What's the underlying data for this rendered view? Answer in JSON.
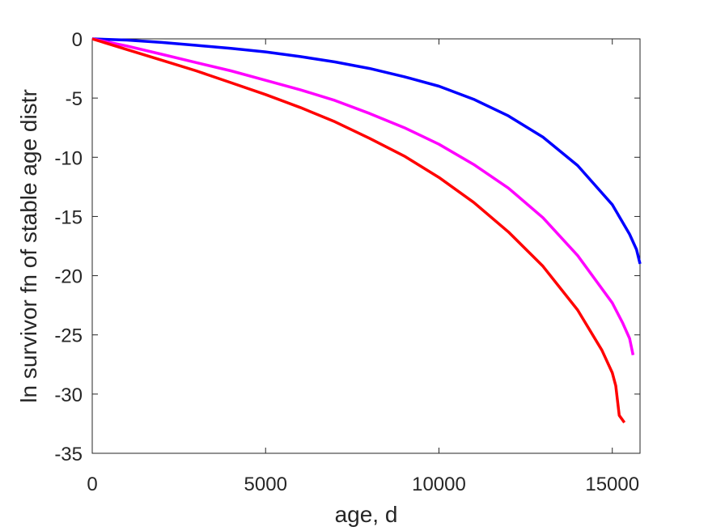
{
  "chart_data": {
    "type": "line",
    "xlabel": "age, d",
    "ylabel": "ln survivor fn of stable age distr",
    "xlim": [
      0,
      15800
    ],
    "ylim": [
      -35,
      0
    ],
    "xticks": [
      0,
      5000,
      10000,
      15000
    ],
    "xtick_labels": [
      "0",
      "5000",
      "10000",
      "15000"
    ],
    "yticks": [
      0,
      -5,
      -10,
      -15,
      -20,
      -25,
      -30,
      -35
    ],
    "ytick_labels": [
      "0",
      "-5",
      "-10",
      "-15",
      "-20",
      "-25",
      "-30",
      "-35"
    ],
    "grid": false,
    "box": true,
    "series": [
      {
        "color": "#0000ff",
        "points": [
          [
            0,
            0
          ],
          [
            1000,
            -0.1
          ],
          [
            2000,
            -0.3
          ],
          [
            3000,
            -0.55
          ],
          [
            4000,
            -0.8
          ],
          [
            5000,
            -1.1
          ],
          [
            6000,
            -1.5
          ],
          [
            7000,
            -1.95
          ],
          [
            8000,
            -2.5
          ],
          [
            9000,
            -3.2
          ],
          [
            10000,
            -4.0
          ],
          [
            11000,
            -5.1
          ],
          [
            12000,
            -6.5
          ],
          [
            13000,
            -8.3
          ],
          [
            14000,
            -10.7
          ],
          [
            15000,
            -14.0
          ],
          [
            15500,
            -16.5
          ],
          [
            15700,
            -17.8
          ],
          [
            15800,
            -19.0
          ]
        ]
      },
      {
        "color": "#ff00ff",
        "points": [
          [
            0,
            0
          ],
          [
            1000,
            -0.6
          ],
          [
            2000,
            -1.3
          ],
          [
            3000,
            -2.0
          ],
          [
            4000,
            -2.7
          ],
          [
            5000,
            -3.5
          ],
          [
            6000,
            -4.3
          ],
          [
            7000,
            -5.2
          ],
          [
            8000,
            -6.3
          ],
          [
            9000,
            -7.5
          ],
          [
            10000,
            -8.9
          ],
          [
            11000,
            -10.6
          ],
          [
            12000,
            -12.6
          ],
          [
            13000,
            -15.1
          ],
          [
            14000,
            -18.3
          ],
          [
            15000,
            -22.3
          ],
          [
            15300,
            -24.0
          ],
          [
            15500,
            -25.3
          ],
          [
            15600,
            -26.7
          ]
        ]
      },
      {
        "color": "#ff0000",
        "points": [
          [
            0,
            0
          ],
          [
            1000,
            -0.9
          ],
          [
            2000,
            -1.8
          ],
          [
            3000,
            -2.7
          ],
          [
            4000,
            -3.7
          ],
          [
            5000,
            -4.7
          ],
          [
            6000,
            -5.8
          ],
          [
            7000,
            -7.0
          ],
          [
            8000,
            -8.4
          ],
          [
            9000,
            -9.9
          ],
          [
            10000,
            -11.7
          ],
          [
            11000,
            -13.8
          ],
          [
            12000,
            -16.3
          ],
          [
            13000,
            -19.2
          ],
          [
            14000,
            -22.9
          ],
          [
            14700,
            -26.3
          ],
          [
            15000,
            -28.2
          ],
          [
            15100,
            -29.3
          ],
          [
            15200,
            -31.8
          ],
          [
            15350,
            -32.4
          ]
        ]
      }
    ]
  }
}
